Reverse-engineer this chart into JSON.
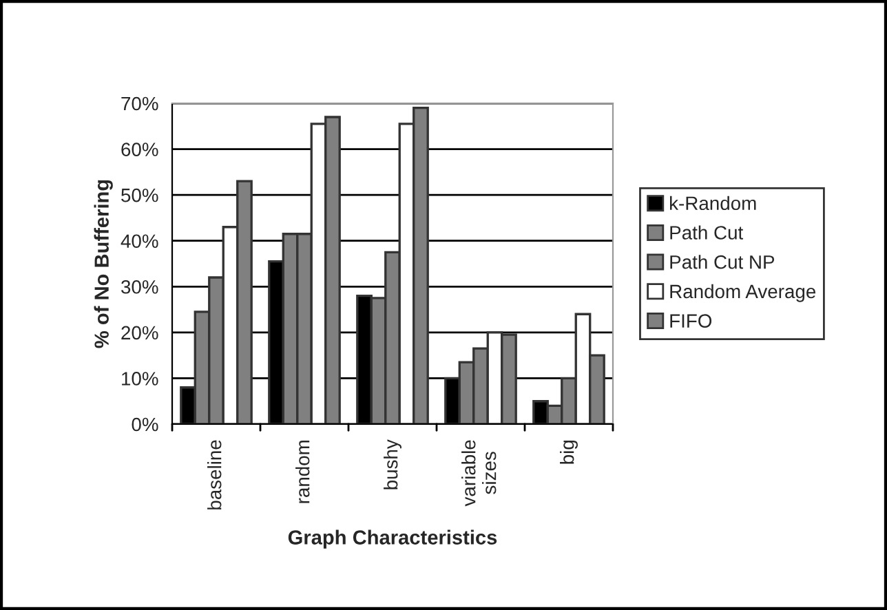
{
  "chart_data": {
    "type": "bar",
    "xlabel": "Graph Characteristics",
    "ylabel": "% of No Buffering",
    "categories": [
      "baseline",
      "random",
      "bushy",
      "variable\nsizes",
      "big"
    ],
    "series": [
      {
        "name": "k-Random",
        "color": "#000000",
        "values": [
          8,
          35.5,
          28,
          10,
          5
        ]
      },
      {
        "name": "Path Cut",
        "color": "#808080",
        "values": [
          24.5,
          41.5,
          27.5,
          13.5,
          4
        ]
      },
      {
        "name": "Path Cut NP",
        "color": "#808080",
        "values": [
          32,
          41.5,
          37.5,
          16.5,
          10
        ]
      },
      {
        "name": "Random Average",
        "color": "#ffffff",
        "values": [
          43,
          65.5,
          65.5,
          20,
          24
        ]
      },
      {
        "name": "FIFO",
        "color": "#808080",
        "values": [
          53,
          67,
          69,
          19.5,
          15
        ]
      }
    ],
    "ylim": [
      0,
      70
    ],
    "yticks": [
      {
        "value": 0,
        "label": "0%"
      },
      {
        "value": 10,
        "label": "10%"
      },
      {
        "value": 20,
        "label": "20%"
      },
      {
        "value": 30,
        "label": "30%"
      },
      {
        "value": 40,
        "label": "40%"
      },
      {
        "value": 50,
        "label": "50%"
      },
      {
        "value": 60,
        "label": "60%"
      },
      {
        "value": 70,
        "label": "70%"
      }
    ],
    "grid": "y",
    "legend": "right"
  }
}
